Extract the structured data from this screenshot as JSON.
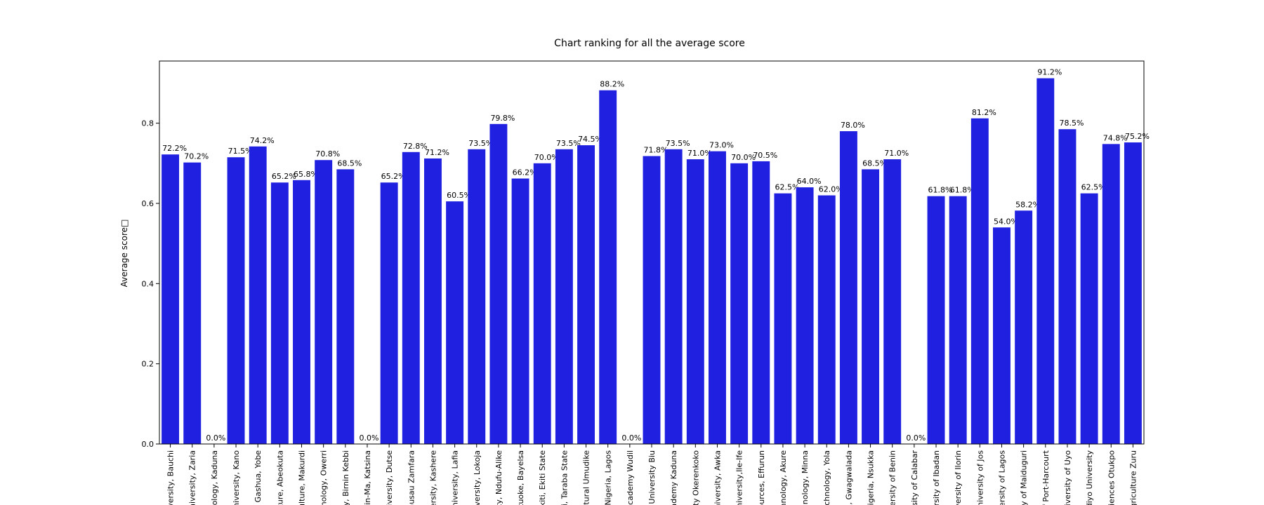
{
  "chart_data": {
    "type": "bar",
    "title": "Chart ranking for all the average score",
    "xlabel": "",
    "ylabel": "Average score□",
    "ylim": [
      0,
      0.955
    ],
    "yticks": [
      0.0,
      0.2,
      0.4,
      0.6,
      0.8
    ],
    "ytick_labels": [
      "0.0",
      "0.2",
      "0.4",
      "0.6",
      "0.8"
    ],
    "bar_color": "#2020e0",
    "grid": false,
    "categories": [
      "niversity, Bauchi",
      "University, Zaria",
      "nnology, Kaduna",
      "University, Kano",
      "ity Gashua, Yobe",
      "ulture, Abeokuta",
      "iculture, Makurdi",
      "chnology, Owerri",
      "sity, Birnin Kebbi",
      "itsin-Ma, Katsina",
      "University, Dutse",
      "Gusau Zamfara",
      "iversity, Kashere",
      "University, Lafia",
      "niversity, Lokoja",
      "sity, Ndufu-Alike",
      "Otuoke, Bayelsa",
      "-Ekiti, Ekiti State",
      "ari, Taraba State",
      "icultural Umudike",
      "of Nigeria, Lagos",
      "Academy Wudil",
      "ny University Biu",
      "cademy Kaduna",
      "rsity Okerenkoko",
      "University, Awka",
      "University,Ile-Ife",
      "sources, Effurun",
      "chnology, Akure",
      "chnology, Minna",
      "Technology, Yola",
      "uja, Gwagwalada",
      "Nigeria, Nsukka",
      "iversity of Benin",
      "ersity of Calabar",
      "ersity of Ibadan",
      "niversity of Ilorin",
      "University of Jos",
      "iversity of Lagos",
      "ity of Maiduguri",
      "of Port-Harcourt",
      "University of Uyo",
      "Odiyo University",
      "Sciences Otukpo",
      "Agriculture Zuru"
    ],
    "values": [
      0.722,
      0.702,
      0.0,
      0.715,
      0.742,
      0.652,
      0.658,
      0.708,
      0.685,
      0.0,
      0.652,
      0.728,
      0.712,
      0.605,
      0.735,
      0.798,
      0.662,
      0.7,
      0.735,
      0.745,
      0.882,
      0.0,
      0.718,
      0.735,
      0.71,
      0.73,
      0.7,
      0.705,
      0.625,
      0.64,
      0.62,
      0.78,
      0.685,
      0.71,
      0.0,
      0.618,
      0.618,
      0.812,
      0.54,
      0.582,
      0.912,
      0.785,
      0.625,
      0.748,
      0.752
    ],
    "labels": [
      "72.2%",
      "70.2%",
      "0.0%",
      "71.5%",
      "74.2%",
      "65.2%",
      "65.8%",
      "70.8%",
      "68.5%",
      "0.0%",
      "65.2%",
      "72.8%",
      "71.2%",
      "60.5%",
      "73.5%",
      "79.8%",
      "66.2%",
      "70.0%",
      "73.5%",
      "74.5%",
      "88.2%",
      "0.0%",
      "71.8%",
      "73.5%",
      "71.0%",
      "73.0%",
      "70.0%",
      "70.5%",
      "62.5%",
      "64.0%",
      "62.0%",
      "78.0%",
      "68.5%",
      "71.0%",
      "0.0%",
      "61.8%",
      "61.8%",
      "81.2%",
      "54.0%",
      "58.2%",
      "91.2%",
      "78.5%",
      "62.5%",
      "74.8%",
      "75.2%"
    ]
  }
}
